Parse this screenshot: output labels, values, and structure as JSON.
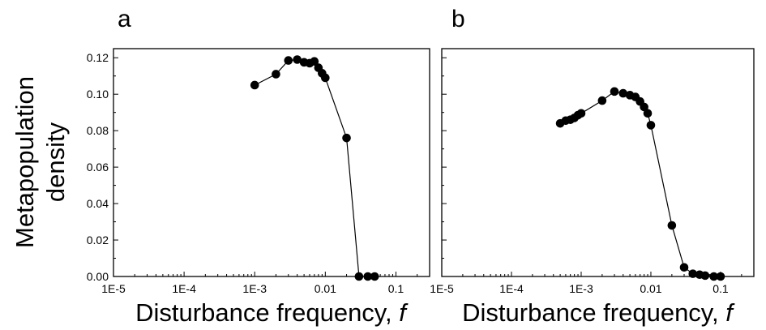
{
  "figure": {
    "ylabel_line1": "Metapopulation",
    "ylabel_line2": "density"
  },
  "chart_data": [
    {
      "type": "line",
      "panel_label": "a",
      "xlabel": "Disturbance frequency, ",
      "xlabel_var": "f",
      "ylabel": "Metapopulation density",
      "x_scale": "log",
      "xlim": [
        1e-05,
        0.3
      ],
      "ylim": [
        0.0,
        0.125
      ],
      "x_ticks": [
        1e-05,
        0.0001,
        0.001,
        0.01,
        0.1
      ],
      "x_tick_labels": [
        "1E-5",
        "1E-4",
        "1E-3",
        "0.01",
        "0.1"
      ],
      "y_ticks": [
        0.0,
        0.02,
        0.04,
        0.06,
        0.08,
        0.1,
        0.12
      ],
      "y_tick_labels": [
        "0.00",
        "0.02",
        "0.04",
        "0.06",
        "0.08",
        "0.10",
        "0.12"
      ],
      "grid": false,
      "series": [
        {
          "x": [
            0.001,
            0.002,
            0.003,
            0.004,
            0.005,
            0.006,
            0.007,
            0.008,
            0.009,
            0.01,
            0.02,
            0.03,
            0.04,
            0.05
          ],
          "y": [
            0.105,
            0.111,
            0.1185,
            0.119,
            0.1175,
            0.117,
            0.118,
            0.1145,
            0.1115,
            0.109,
            0.076,
            0.0,
            0.0,
            0.0
          ]
        }
      ]
    },
    {
      "type": "line",
      "panel_label": "b",
      "xlabel": "Disturbance frequency, ",
      "xlabel_var": "f",
      "ylabel": "Metapopulation density",
      "x_scale": "log",
      "xlim": [
        1e-05,
        0.3
      ],
      "ylim": [
        0.0,
        0.125
      ],
      "x_ticks": [
        1e-05,
        0.0001,
        0.001,
        0.01,
        0.1
      ],
      "x_tick_labels": [
        "1E-5",
        "1E-4",
        "1E-3",
        "0.01",
        "0.1"
      ],
      "grid": false,
      "series": [
        {
          "x": [
            0.0005,
            0.0006,
            0.0007,
            0.0008,
            0.0009,
            0.001,
            0.002,
            0.003,
            0.004,
            0.005,
            0.006,
            0.007,
            0.008,
            0.009,
            0.01,
            0.02,
            0.03,
            0.04,
            0.05,
            0.06,
            0.08,
            0.1
          ],
          "y": [
            0.084,
            0.0855,
            0.086,
            0.087,
            0.0885,
            0.0895,
            0.0965,
            0.1015,
            0.1005,
            0.0995,
            0.0985,
            0.096,
            0.093,
            0.0895,
            0.083,
            0.028,
            0.005,
            0.0015,
            0.001,
            0.0005,
            0.0,
            0.0
          ]
        }
      ]
    }
  ]
}
